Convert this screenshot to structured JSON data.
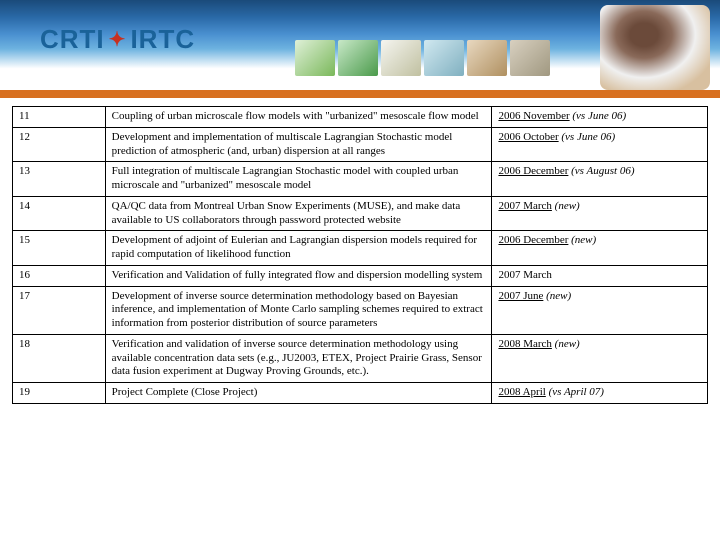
{
  "banner": {
    "logo_left": "CRTI",
    "logo_right": "IRTC",
    "maple": "✦"
  },
  "table": {
    "rows": [
      {
        "n": "11",
        "desc": "Coupling of urban microscale flow models with \"urbanized\" mesoscale flow model",
        "date": "2006 November",
        "note": "(vs June 06)",
        "date_u": true
      },
      {
        "n": "12",
        "desc": "Development and implementation of multiscale Lagrangian Stochastic model prediction of atmospheric (and, urban) dispersion at all ranges",
        "date": "2006 October",
        "note": "(vs June 06)",
        "date_u": true
      },
      {
        "n": "13",
        "desc": "Full integration of multiscale Lagrangian Stochastic model with coupled urban microscale and \"urbanized\" mesoscale model",
        "date": "2006  December",
        "note": "(vs August 06)",
        "date_u": true
      },
      {
        "n": "14",
        "desc": "QA/QC data from Montreal Urban Snow Experiments (MUSE), and make data available to US collaborators through password protected website",
        "date": "2007 March",
        "note": "(new)",
        "date_u": true
      },
      {
        "n": "15",
        "desc": "Development of adjoint of Eulerian and Lagrangian dispersion models required for rapid computation of  likelihood function",
        "date": "2006 December",
        "note": "(new)",
        "date_u": true
      },
      {
        "n": "16",
        "desc": "Verification and Validation of fully integrated flow and dispersion modelling system",
        "date": "2007 March",
        "note": "",
        "date_u": false
      },
      {
        "n": "17",
        "desc": "Development of inverse source determination methodology based on Bayesian inference, and implementation of Monte Carlo sampling schemes required to extract information from posterior distribution of source parameters",
        "date": "2007 June",
        "note": "(new)",
        "date_u": true
      },
      {
        "n": "18",
        "desc": "Verification and validation of inverse source determination methodology using available concentration data sets (e.g., JU2003, ETEX, Project Prairie Grass,  Sensor data fusion experiment at Dugway Proving Grounds, etc.).",
        "date": "2008 March",
        "note": "(new)",
        "date_u": true
      },
      {
        "n": "19",
        "desc": "Project Complete (Close Project)",
        "date": "2008 April",
        "note": "(vs April 07)",
        "date_u": true
      }
    ]
  }
}
